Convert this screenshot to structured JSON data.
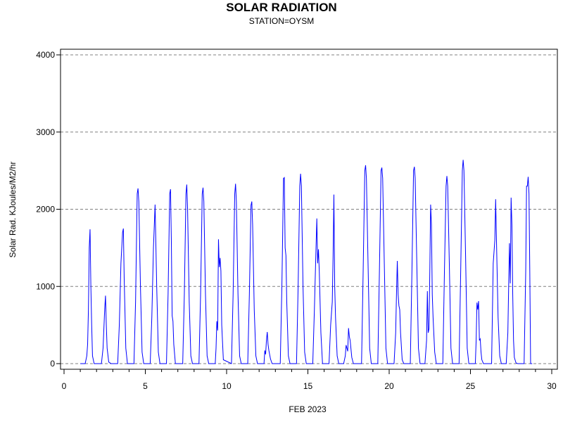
{
  "chart_data": {
    "type": "line",
    "title": "SOLAR RADIATION",
    "subtitle": "STATION=OYSM",
    "xlabel": "FEB 2023",
    "ylabel": "Solar Rad. KJoules/M2/hr",
    "xlim": [
      0,
      30
    ],
    "ylim": [
      0,
      4000
    ],
    "x_ticks": [
      0,
      5,
      10,
      15,
      20,
      25,
      30
    ],
    "x_tick_labels": [
      "0",
      "5",
      "10",
      "15",
      "20",
      "25",
      "30"
    ],
    "y_ticks": [
      0,
      1000,
      2000,
      3000,
      4000
    ],
    "y_tick_labels": [
      "0",
      "1000",
      "2000",
      "3000",
      "4000"
    ],
    "grid": {
      "horizontal": true,
      "style": "dashed"
    },
    "series": [
      {
        "color": "#0000ff",
        "x": [
          1.0,
          1.3,
          1.4,
          1.45,
          1.5,
          1.55,
          1.6,
          1.65,
          1.7,
          1.75,
          1.85,
          2.3,
          2.4,
          2.5,
          2.55,
          2.6,
          2.65,
          2.75,
          2.9,
          3.3,
          3.4,
          3.5,
          3.6,
          3.65,
          3.7,
          3.8,
          3.9,
          4.3,
          4.4,
          4.5,
          4.55,
          4.6,
          4.7,
          4.8,
          4.9,
          5.3,
          5.4,
          5.5,
          5.6,
          5.7,
          5.8,
          5.9,
          6.3,
          6.4,
          6.5,
          6.55,
          6.6,
          6.65,
          6.7,
          6.75,
          6.85,
          7.3,
          7.4,
          7.5,
          7.55,
          7.6,
          7.7,
          7.8,
          7.9,
          8.3,
          8.4,
          8.5,
          8.55,
          8.6,
          8.7,
          8.8,
          8.9,
          9.3,
          9.35,
          9.4,
          9.45,
          9.5,
          9.55,
          9.6,
          9.65,
          9.7,
          9.8,
          10.3,
          10.4,
          10.5,
          10.55,
          10.6,
          10.7,
          10.8,
          10.9,
          11.3,
          11.4,
          11.5,
          11.55,
          11.6,
          11.7,
          11.8,
          11.9,
          12.3,
          12.35,
          12.4,
          12.45,
          12.5,
          12.55,
          12.6,
          12.7,
          12.8,
          13.3,
          13.4,
          13.5,
          13.55,
          13.6,
          13.65,
          13.7,
          13.8,
          13.9,
          14.3,
          14.4,
          14.5,
          14.55,
          14.6,
          14.7,
          14.8,
          14.9,
          15.3,
          15.4,
          15.5,
          15.55,
          15.6,
          15.65,
          15.7,
          15.8,
          15.9,
          16.3,
          16.4,
          16.5,
          16.55,
          16.6,
          16.65,
          16.7,
          16.8,
          16.9,
          17.2,
          17.3,
          17.35,
          17.4,
          17.45,
          17.5,
          17.55,
          17.6,
          17.7,
          17.8,
          18.3,
          18.4,
          18.5,
          18.55,
          18.6,
          18.7,
          18.8,
          18.9,
          19.3,
          19.4,
          19.5,
          19.55,
          19.6,
          19.7,
          19.8,
          19.9,
          20.3,
          20.4,
          20.45,
          20.5,
          20.55,
          20.6,
          20.65,
          20.7,
          20.8,
          20.9,
          21.3,
          21.4,
          21.5,
          21.55,
          21.6,
          21.7,
          21.8,
          21.9,
          22.2,
          22.3,
          22.35,
          22.4,
          22.45,
          22.5,
          22.55,
          22.6,
          22.65,
          22.7,
          22.8,
          22.9,
          23.3,
          23.4,
          23.5,
          23.55,
          23.6,
          23.7,
          23.8,
          23.9,
          24.3,
          24.4,
          24.5,
          24.55,
          24.6,
          24.7,
          24.8,
          24.9,
          25.3,
          25.35,
          25.4,
          25.45,
          25.5,
          25.55,
          25.6,
          25.65,
          25.7,
          25.8,
          26.3,
          26.4,
          26.5,
          26.55,
          26.6,
          26.7,
          26.8,
          26.9,
          27.2,
          27.3,
          27.35,
          27.4,
          27.45,
          27.5,
          27.55,
          27.6,
          27.65,
          27.7,
          27.8,
          27.9,
          28.3,
          28.4,
          28.45,
          28.5,
          28.55,
          28.6,
          28.65,
          28.7,
          28.8
        ],
        "y": [
          0,
          0,
          100,
          250,
          700,
          1500,
          1740,
          1000,
          500,
          100,
          0,
          0,
          200,
          700,
          880,
          500,
          200,
          20,
          0,
          0,
          500,
          1300,
          1700,
          1750,
          1100,
          200,
          0,
          0,
          800,
          2200,
          2270,
          2100,
          1000,
          150,
          0,
          0,
          600,
          1500,
          2060,
          1000,
          150,
          0,
          0,
          900,
          2200,
          2260,
          1600,
          620,
          550,
          250,
          0,
          0,
          900,
          2200,
          2320,
          2000,
          800,
          100,
          0,
          0,
          900,
          2200,
          2280,
          2100,
          900,
          100,
          0,
          0,
          200,
          550,
          430,
          1610,
          1250,
          1370,
          1200,
          500,
          50,
          0,
          900,
          2200,
          2330,
          2100,
          900,
          100,
          0,
          0,
          900,
          2050,
          2100,
          1800,
          700,
          100,
          0,
          0,
          170,
          120,
          300,
          410,
          250,
          170,
          60,
          0,
          0,
          1000,
          2400,
          2410,
          1500,
          1400,
          800,
          100,
          0,
          0,
          1000,
          2300,
          2460,
          2300,
          1000,
          150,
          0,
          0,
          700,
          1500,
          1880,
          1300,
          1480,
          1200,
          400,
          0,
          0,
          500,
          800,
          1400,
          2190,
          1000,
          600,
          100,
          0,
          0,
          100,
          240,
          200,
          160,
          460,
          350,
          300,
          80,
          0,
          0,
          1200,
          2500,
          2570,
          2400,
          1300,
          200,
          0,
          0,
          1200,
          2500,
          2540,
          2400,
          1300,
          200,
          0,
          0,
          400,
          900,
          1330,
          900,
          750,
          700,
          400,
          50,
          0,
          0,
          1200,
          2500,
          2550,
          2400,
          1300,
          200,
          0,
          0,
          300,
          940,
          400,
          450,
          1200,
          2060,
          1800,
          900,
          600,
          150,
          0,
          0,
          1200,
          2300,
          2430,
          2300,
          1300,
          200,
          0,
          0,
          1200,
          2500,
          2640,
          2500,
          1400,
          200,
          0,
          0,
          300,
          790,
          700,
          810,
          300,
          320,
          150,
          50,
          0,
          0,
          1300,
          1600,
          2130,
          1600,
          600,
          100,
          0,
          0,
          400,
          1000,
          1560,
          1040,
          2150,
          1800,
          900,
          300,
          80,
          10,
          0,
          0,
          1200,
          2300,
          2300,
          2420,
          2200,
          1200,
          0,
          0
        ]
      }
    ]
  }
}
